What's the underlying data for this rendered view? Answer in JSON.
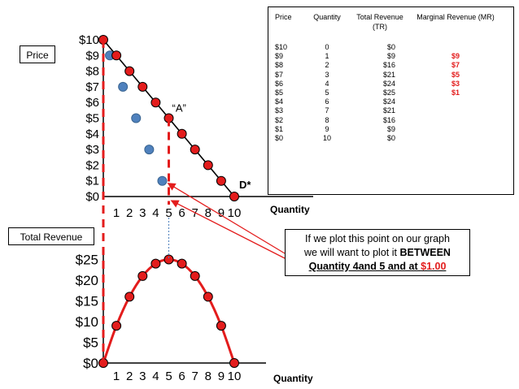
{
  "labels": {
    "price_box": "Price",
    "total_revenue_box": "Total Revenue",
    "quantity_top": "Quantity",
    "quantity_bottom": "Quantity",
    "point_a": "“A”",
    "demand": "D*"
  },
  "note": {
    "line1": "If we plot this point on our graph",
    "line2_prefix": "we will want to plot it ",
    "line2_bold": "BETWEEN",
    "line3_prefix": "Quantity 4and 5 and at ",
    "line3_red": "$1.00"
  },
  "table": {
    "headers": {
      "price": "Price",
      "quantity": "Quantity",
      "tr": "Total Revenue (TR)",
      "mr": "Marginal Revenue (MR)"
    },
    "rows": [
      {
        "price": "$10",
        "quantity": "0",
        "tr": "$0",
        "mr": ""
      },
      {
        "price": "$9",
        "quantity": "1",
        "tr": "$9",
        "mr": "$9"
      },
      {
        "price": "$8",
        "quantity": "2",
        "tr": "$16",
        "mr": "$7"
      },
      {
        "price": "$7",
        "quantity": "3",
        "tr": "$21",
        "mr": "$5"
      },
      {
        "price": "$6",
        "quantity": "4",
        "tr": "$24",
        "mr": "$3"
      },
      {
        "price": "$5",
        "quantity": "5",
        "tr": "$25",
        "mr": "$1"
      },
      {
        "price": "$4",
        "quantity": "6",
        "tr": "$24",
        "mr": ""
      },
      {
        "price": "$3",
        "quantity": "7",
        "tr": "$21",
        "mr": ""
      },
      {
        "price": "$2",
        "quantity": "8",
        "tr": "$16",
        "mr": ""
      },
      {
        "price": "$1",
        "quantity": "9",
        "tr": "$9",
        "mr": ""
      },
      {
        "price": "$0",
        "quantity": "10",
        "tr": "$0",
        "mr": ""
      }
    ]
  },
  "colors": {
    "red_point": "#e31c1c",
    "blue_point": "#4f81bd",
    "line": "#000000",
    "arrow": "#e31c1c",
    "dashed": "#e31c1c"
  },
  "chart_data": [
    {
      "type": "scatter",
      "title": "",
      "xlabel": "Quantity",
      "ylabel": "Price",
      "xlim": [
        0,
        10
      ],
      "ylim": [
        0,
        10
      ],
      "x_ticks": [
        "1",
        "2",
        "3",
        "4",
        "5",
        "6",
        "7",
        "8",
        "9",
        "10"
      ],
      "y_ticks": [
        "$0",
        "$1",
        "$2",
        "$3",
        "$4",
        "$5",
        "$6",
        "$7",
        "$8",
        "$9",
        "$10"
      ],
      "series": [
        {
          "name": "",
          "kind": "demand",
          "x": [
            0,
            1,
            2,
            3,
            4,
            5,
            6,
            7,
            8,
            9,
            10
          ],
          "y": [
            10,
            9,
            8,
            7,
            6,
            5,
            4,
            3,
            2,
            1,
            0
          ]
        },
        {
          "name": "",
          "kind": "marginal revenue",
          "x": [
            0.5,
            1.5,
            2.5,
            3.5,
            4.5
          ],
          "y": [
            9,
            7,
            5,
            3,
            1
          ]
        }
      ],
      "annotations": [
        {
          "text": "“A”",
          "x": 5,
          "y": 5
        },
        {
          "text": "D*",
          "x": 10,
          "y": 0
        }
      ]
    },
    {
      "type": "line",
      "title": "",
      "xlabel": "Quantity",
      "ylabel": "Total Revenue",
      "xlim": [
        0,
        10
      ],
      "ylim": [
        0,
        25
      ],
      "x_ticks": [
        "1",
        "2",
        "3",
        "4",
        "5",
        "6",
        "7",
        "8",
        "9",
        "10"
      ],
      "y_ticks": [
        "$0",
        "$5",
        "$10",
        "$15",
        "$20",
        "$25"
      ],
      "series": [
        {
          "name": "",
          "x": [
            0,
            1,
            2,
            3,
            4,
            5,
            6,
            7,
            8,
            9,
            10
          ],
          "y": [
            0,
            9,
            16,
            21,
            24,
            25,
            24,
            21,
            16,
            9,
            0
          ]
        }
      ]
    }
  ]
}
